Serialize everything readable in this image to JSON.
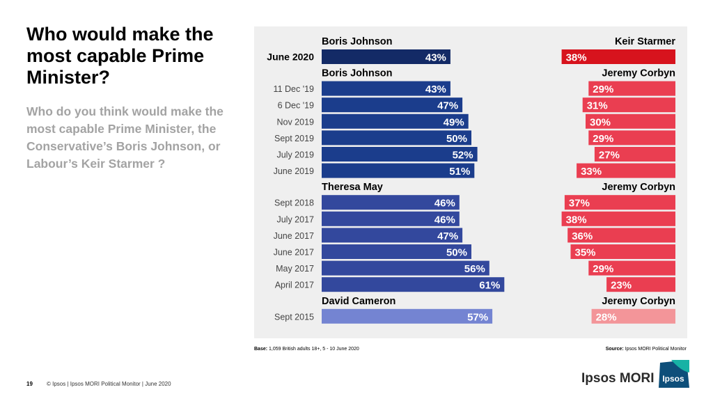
{
  "slide": {
    "title": "Who would make the most capable Prime Minister?",
    "subtitle": "Who do you think would make the most capable Prime Minister, the Conservative’s Boris Johnson, or Labour’s Keir Starmer ?",
    "base_label": "Base:",
    "base_text": " 1,059 British adults 18+, 5 - 10 June 2020",
    "source_label": "Source:",
    "source_text": " Ipsos MORI Political Monitor",
    "page_number": "19",
    "footer": "© Ipsos | Ipsos MORI  Political Monitor | June 2020",
    "brand": "Ipsos MORI",
    "logo_text": "Ipsos"
  },
  "chart_data": {
    "type": "bar",
    "groups": [
      {
        "left_name": "Boris Johnson",
        "right_name": "Keir Starmer",
        "left_color": "#132a66",
        "right_color": "#d7131d",
        "rows": [
          {
            "label": "June 2020",
            "left": 43,
            "right": 38,
            "bold": true
          }
        ]
      },
      {
        "left_name": "Boris Johnson",
        "right_name": "Jeremy Corbyn",
        "left_color": "#1b3d8c",
        "right_color": "#ea3e51",
        "rows": [
          {
            "label": "11 Dec '19",
            "left": 43,
            "right": 29
          },
          {
            "label": "6 Dec '19",
            "left": 47,
            "right": 31
          },
          {
            "label": "Nov 2019",
            "left": 49,
            "right": 30
          },
          {
            "label": "Sept 2019",
            "left": 50,
            "right": 29
          },
          {
            "label": "July 2019",
            "left": 52,
            "right": 27
          },
          {
            "label": "June 2019",
            "left": 51,
            "right": 33
          }
        ]
      },
      {
        "left_name": "Theresa May",
        "right_name": "Jeremy Corbyn",
        "left_color": "#33489d",
        "right_color": "#ea3e51",
        "rows": [
          {
            "label": "Sept 2018",
            "left": 46,
            "right": 37
          },
          {
            "label": "July 2017",
            "left": 46,
            "right": 38
          },
          {
            "label": "June 2017",
            "left": 47,
            "right": 36
          },
          {
            "label": "June 2017",
            "left": 50,
            "right": 35
          },
          {
            "label": "May 2017",
            "left": 56,
            "right": 29
          },
          {
            "label": "April 2017",
            "left": 61,
            "right": 23
          }
        ]
      },
      {
        "left_name": "David Cameron",
        "right_name": "Jeremy Corbyn",
        "left_color": "#7484d2",
        "right_color": "#f39599",
        "rows": [
          {
            "label": "Sept 2015",
            "left": 57,
            "right": 28
          }
        ]
      }
    ],
    "value_suffix": "%",
    "xlim": [
      0,
      100
    ],
    "grid": false,
    "legend": "none"
  }
}
